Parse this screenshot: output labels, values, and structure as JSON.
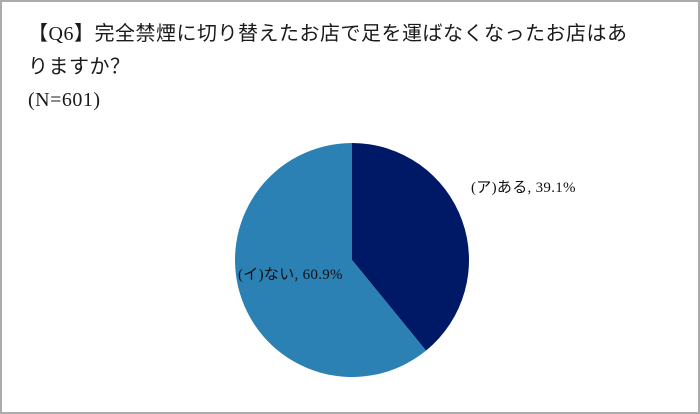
{
  "header": {
    "title_line1": "【Q6】完全禁煙に切り替えたお店で足を運ばなくなったお店はあ",
    "title_line2": "りますか？",
    "sample_size": "(N=601)"
  },
  "chart_data": {
    "type": "pie",
    "title": "【Q6】完全禁煙に切り替えたお店で足を運ばなくなったお店はありますか？",
    "sample_size_label": "(N=601)",
    "n": 601,
    "slices": [
      {
        "name": "aru",
        "label": "(ア)ある",
        "value": 39.1,
        "display": "(ア)ある, 39.1%",
        "color": "#001966"
      },
      {
        "name": "nai",
        "label": "(イ)ない",
        "value": 60.9,
        "display": "(イ)ない, 60.9%",
        "color": "#2B80B4"
      }
    ],
    "layout": {
      "center": [
        350,
        258
      ],
      "radius": 117,
      "start_angle_deg": -90,
      "direction": "clockwise",
      "legend": "none",
      "label_color": "#111111",
      "background": "#ffffff",
      "border_color": "#ababab"
    }
  }
}
